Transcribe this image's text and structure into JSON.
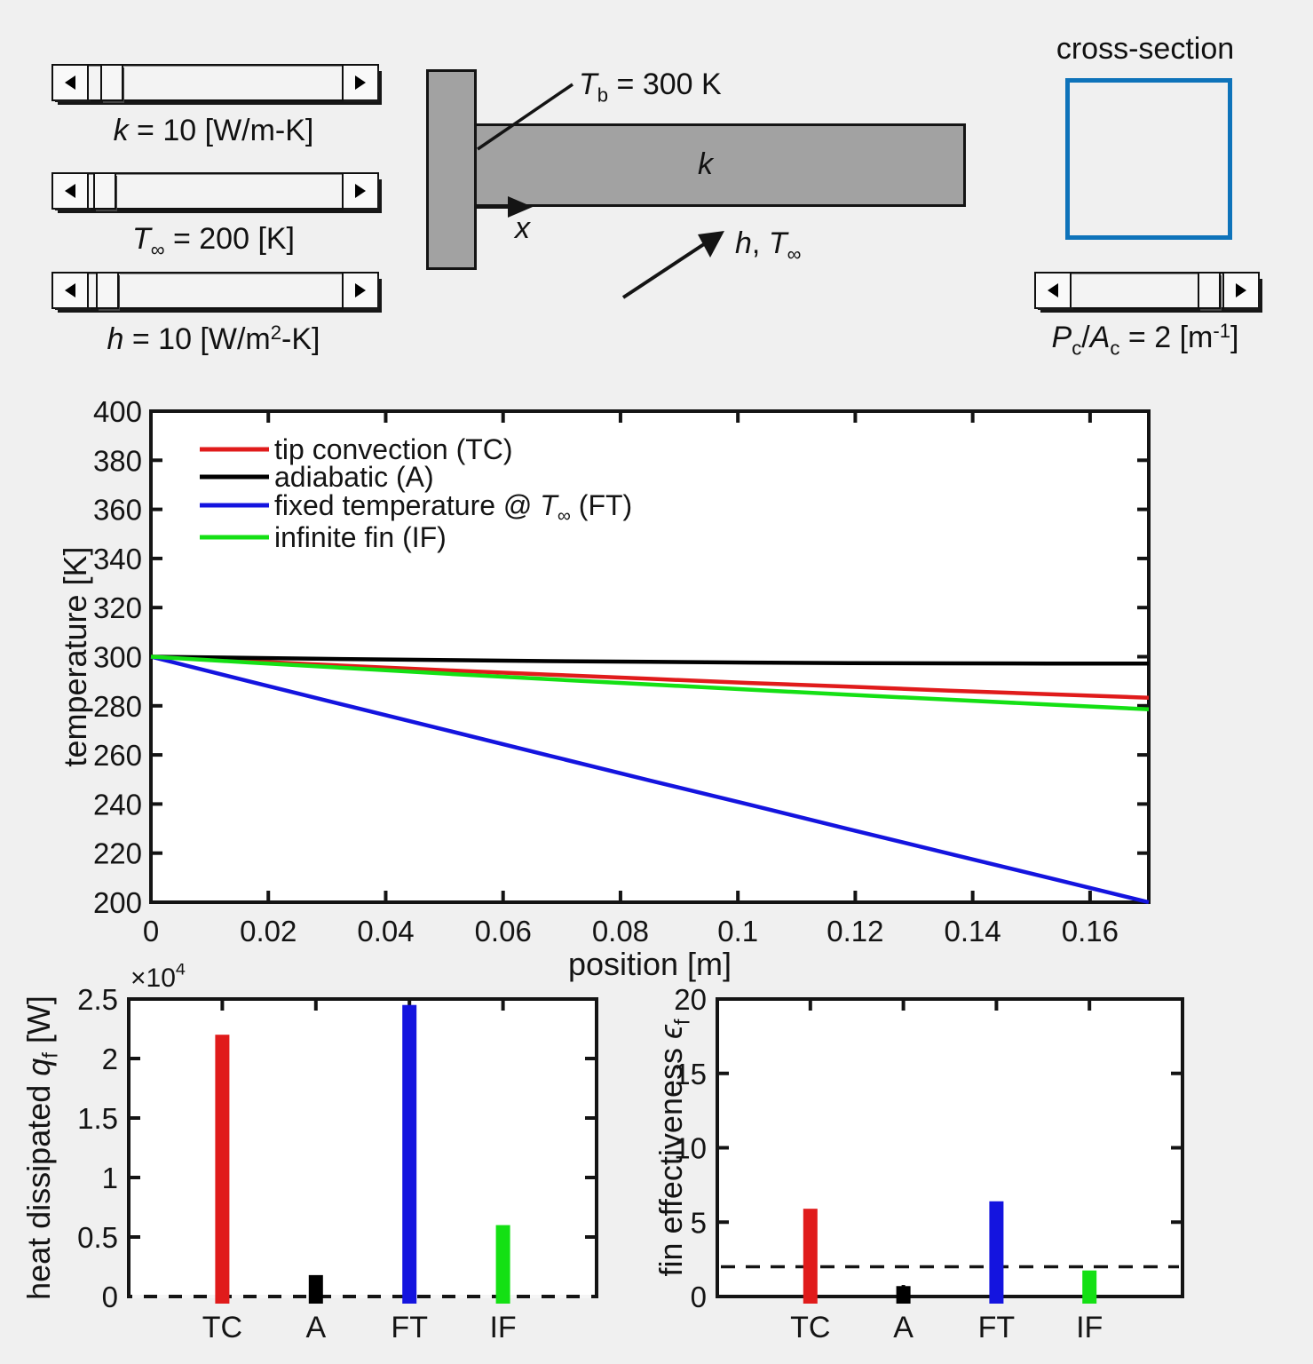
{
  "app": {
    "background": "#f0f0f0",
    "accent_blue": "#0e73ba",
    "fin_gray": "#a2a2a2"
  },
  "controls": {
    "sliders": [
      {
        "id": "k",
        "thumb_percent": 5,
        "label_parts": [
          [
            "i",
            "k"
          ],
          [
            "",
            " = 10 [W/m-K]"
          ]
        ]
      },
      {
        "id": "Tinf",
        "thumb_percent": 2,
        "label_parts": [
          [
            "i",
            "T"
          ],
          [
            "sub",
            "∞"
          ],
          [
            "",
            " = 200 [K]"
          ]
        ]
      },
      {
        "id": "h",
        "thumb_percent": 3,
        "label_parts": [
          [
            "i",
            "h"
          ],
          [
            "",
            " = 10 [W/m"
          ],
          [
            "sup",
            "2"
          ],
          [
            "",
            "-K]"
          ]
        ]
      },
      {
        "id": "PcAc",
        "thumb_percent": 96,
        "label_parts": [
          [
            "i",
            "P"
          ],
          [
            "sub",
            "c"
          ],
          [
            "",
            "/"
          ],
          [
            "i",
            "A"
          ],
          [
            "sub",
            "c"
          ],
          [
            "",
            " = 2 [m"
          ],
          [
            "sup",
            "-1"
          ],
          [
            "",
            "]"
          ]
        ]
      }
    ]
  },
  "diagram": {
    "base_temp_parts": [
      [
        "i",
        "T"
      ],
      [
        "sub",
        "b"
      ],
      [
        "",
        " = 300 K"
      ]
    ],
    "conductivity_parts": [
      [
        "i",
        "k"
      ]
    ],
    "axis_parts": [
      [
        "i",
        "x"
      ]
    ],
    "ambient_parts": [
      [
        "i",
        "h"
      ],
      [
        "",
        ", "
      ],
      [
        "i",
        "T"
      ],
      [
        "sub",
        "∞"
      ]
    ],
    "cross_section_title": "cross-section"
  },
  "chart_data": [
    {
      "type": "line",
      "title": "",
      "xlabel": "position [m]",
      "ylabel": "temperature [K]",
      "xlim": [
        0,
        0.17
      ],
      "ylim": [
        200,
        400
      ],
      "grid": false,
      "legend_position": "upper-left",
      "xticks": [
        0,
        0.02,
        0.04,
        0.06,
        0.08,
        0.1,
        0.12,
        0.14,
        0.16
      ],
      "xtick_labels": [
        "0",
        "0.02",
        "0.04",
        "0.06",
        "0.08",
        "0.1",
        "0.12",
        "0.14",
        "0.16"
      ],
      "yticks": [
        200,
        220,
        240,
        260,
        280,
        300,
        320,
        340,
        360,
        380,
        400
      ],
      "ytick_labels": [
        "200",
        "220",
        "240",
        "260",
        "280",
        "300",
        "320",
        "340",
        "360",
        "380",
        "400"
      ],
      "x": [
        0,
        0.017,
        0.034,
        0.051,
        0.068,
        0.085,
        0.102,
        0.119,
        0.136,
        0.153,
        0.17
      ],
      "series": [
        {
          "name": "tip convection (TC)",
          "color": "#e01b1b",
          "values": [
            300,
            298.1,
            296.2,
            294.4,
            292.7,
            291.0,
            289.3,
            287.8,
            286.2,
            284.7,
            283.3
          ]
        },
        {
          "name": "adiabatic (A)",
          "color": "#000000",
          "values": [
            300,
            299.5,
            299.0,
            298.6,
            298.2,
            297.9,
            297.6,
            297.4,
            297.3,
            297.2,
            297.2
          ]
        },
        {
          "name": "fixed temperature @ T-inf (FT)",
          "color": "#1414df",
          "values": [
            300,
            289.8,
            279.7,
            269.7,
            259.6,
            249.6,
            239.7,
            229.7,
            219.8,
            209.9,
            200
          ]
        },
        {
          "name": "infinite fin (IF)",
          "color": "#14e014",
          "values": [
            300,
            297.6,
            295.3,
            293.0,
            290.8,
            288.7,
            286.6,
            284.5,
            282.5,
            280.5,
            278.6
          ]
        }
      ],
      "legend": [
        {
          "color": "#e01b1b",
          "label_parts": [
            [
              "",
              "tip convection (TC)"
            ]
          ]
        },
        {
          "color": "#000000",
          "label_parts": [
            [
              "",
              "adiabatic (A)"
            ]
          ]
        },
        {
          "color": "#1414df",
          "label_parts": [
            [
              "",
              "fixed temperature @ "
            ],
            [
              "i",
              "T"
            ],
            [
              "sub",
              "∞"
            ],
            [
              "",
              " (FT)"
            ]
          ]
        },
        {
          "color": "#14e014",
          "label_parts": [
            [
              "",
              "infinite fin (IF)"
            ]
          ]
        }
      ]
    },
    {
      "type": "bar",
      "ylabel_parts": [
        [
          "",
          "heat dissipated "
        ],
        [
          "i",
          "q"
        ],
        [
          "sub",
          "f"
        ],
        [
          "",
          " [W]"
        ]
      ],
      "scale_parts": [
        [
          "",
          "×10"
        ],
        [
          "sup",
          "4"
        ]
      ],
      "categories": [
        "TC",
        "A",
        "FT",
        "IF"
      ],
      "values": [
        22000,
        1800,
        24500,
        6000
      ],
      "bar_colors": [
        "#e01b1b",
        "#000000",
        "#1414df",
        "#14e014"
      ],
      "ylim": [
        0,
        25000
      ],
      "yticks": [
        0,
        5000,
        10000,
        15000,
        20000,
        25000
      ],
      "ytick_labels": [
        "0",
        "0.5",
        "1",
        "1.5",
        "2",
        "2.5"
      ],
      "zero_line_dashed": true
    },
    {
      "type": "bar",
      "ylabel_parts": [
        [
          "",
          "fin effectiveness "
        ],
        [
          "i",
          "ϵ"
        ],
        [
          "sub",
          "f"
        ]
      ],
      "categories": [
        "TC",
        "A",
        "FT",
        "IF"
      ],
      "values": [
        5.9,
        0.7,
        6.4,
        1.75
      ],
      "bar_colors": [
        "#e01b1b",
        "#000000",
        "#1414df",
        "#14e014"
      ],
      "ylim": [
        0,
        20
      ],
      "yticks": [
        0,
        5,
        10,
        15,
        20
      ],
      "ytick_labels": [
        "0",
        "5",
        "10",
        "15",
        "20"
      ],
      "ref_line": 2
    }
  ]
}
